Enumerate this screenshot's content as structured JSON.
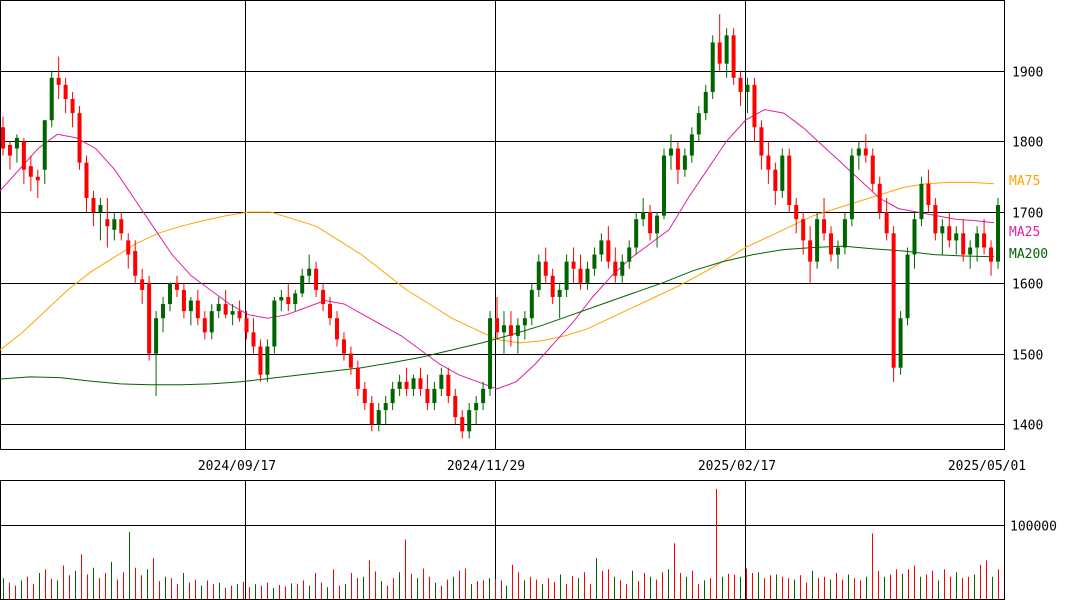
{
  "chart_data": [
    {
      "type": "candlestick",
      "title": "",
      "x_tick_labels": [
        "2024/09/17",
        "2024/11/29",
        "2025/02/17",
        "2025/05/01"
      ],
      "y_tick_labels": [
        "1400",
        "1500",
        "1600",
        "1700",
        "1800",
        "1900"
      ],
      "y_ticks": [
        1400,
        1500,
        1600,
        1700,
        1800,
        1900
      ],
      "ylim": [
        1365,
        2000
      ],
      "grid": true,
      "up_color": "#006400",
      "down_color": "#ff0000",
      "ohlc": [
        [
          1820,
          1835,
          1780,
          1790
        ],
        [
          1795,
          1800,
          1760,
          1780
        ],
        [
          1790,
          1810,
          1770,
          1805
        ],
        [
          1800,
          1805,
          1740,
          1760
        ],
        [
          1765,
          1780,
          1730,
          1750
        ],
        [
          1750,
          1760,
          1720,
          1745
        ],
        [
          1760,
          1830,
          1740,
          1830
        ],
        [
          1830,
          1900,
          1820,
          1890
        ],
        [
          1890,
          1920,
          1860,
          1880
        ],
        [
          1880,
          1890,
          1840,
          1860
        ],
        [
          1860,
          1870,
          1820,
          1840
        ],
        [
          1840,
          1850,
          1760,
          1770
        ],
        [
          1770,
          1780,
          1700,
          1720
        ],
        [
          1720,
          1730,
          1680,
          1700
        ],
        [
          1700,
          1720,
          1660,
          1710
        ],
        [
          1690,
          1720,
          1650,
          1680
        ],
        [
          1675,
          1700,
          1660,
          1690
        ],
        [
          1690,
          1700,
          1660,
          1670
        ],
        [
          1660,
          1670,
          1620,
          1640
        ],
        [
          1645,
          1660,
          1600,
          1610
        ],
        [
          1605,
          1620,
          1570,
          1590
        ],
        [
          1600,
          1610,
          1490,
          1500
        ],
        [
          1500,
          1560,
          1440,
          1550
        ],
        [
          1550,
          1580,
          1530,
          1570
        ],
        [
          1570,
          1600,
          1560,
          1600
        ],
        [
          1600,
          1610,
          1580,
          1590
        ],
        [
          1590,
          1600,
          1550,
          1560
        ],
        [
          1560,
          1580,
          1540,
          1575
        ],
        [
          1575,
          1590,
          1540,
          1550
        ],
        [
          1550,
          1560,
          1520,
          1530
        ],
        [
          1530,
          1570,
          1520,
          1560
        ],
        [
          1560,
          1580,
          1550,
          1570
        ],
        [
          1570,
          1590,
          1550,
          1555
        ],
        [
          1555,
          1570,
          1540,
          1560
        ],
        [
          1560,
          1575,
          1545,
          1550
        ],
        [
          1550,
          1560,
          1520,
          1530
        ],
        [
          1530,
          1550,
          1500,
          1510
        ],
        [
          1510,
          1520,
          1460,
          1470
        ],
        [
          1470,
          1520,
          1460,
          1510
        ],
        [
          1510,
          1580,
          1500,
          1575
        ],
        [
          1575,
          1590,
          1560,
          1580
        ],
        [
          1580,
          1600,
          1560,
          1570
        ],
        [
          1570,
          1590,
          1560,
          1585
        ],
        [
          1585,
          1620,
          1580,
          1610
        ],
        [
          1610,
          1640,
          1600,
          1620
        ],
        [
          1620,
          1630,
          1580,
          1590
        ],
        [
          1590,
          1600,
          1560,
          1570
        ],
        [
          1570,
          1580,
          1540,
          1550
        ],
        [
          1550,
          1560,
          1510,
          1520
        ],
        [
          1520,
          1530,
          1490,
          1500
        ],
        [
          1500,
          1510,
          1470,
          1480
        ],
        [
          1480,
          1490,
          1440,
          1450
        ],
        [
          1450,
          1460,
          1420,
          1430
        ],
        [
          1430,
          1440,
          1390,
          1400
        ],
        [
          1400,
          1430,
          1390,
          1420
        ],
        [
          1420,
          1440,
          1400,
          1430
        ],
        [
          1430,
          1460,
          1420,
          1450
        ],
        [
          1450,
          1470,
          1440,
          1460
        ],
        [
          1460,
          1480,
          1440,
          1450
        ],
        [
          1450,
          1470,
          1440,
          1465
        ],
        [
          1465,
          1480,
          1440,
          1450
        ],
        [
          1450,
          1470,
          1420,
          1430
        ],
        [
          1430,
          1460,
          1420,
          1450
        ],
        [
          1450,
          1480,
          1440,
          1470
        ],
        [
          1470,
          1480,
          1430,
          1440
        ],
        [
          1440,
          1450,
          1400,
          1410
        ],
        [
          1410,
          1420,
          1380,
          1390
        ],
        [
          1390,
          1430,
          1380,
          1420
        ],
        [
          1420,
          1440,
          1400,
          1430
        ],
        [
          1430,
          1460,
          1420,
          1450
        ],
        [
          1450,
          1560,
          1440,
          1550
        ],
        [
          1550,
          1580,
          1520,
          1530
        ],
        [
          1530,
          1560,
          1500,
          1540
        ],
        [
          1540,
          1560,
          1510,
          1525
        ],
        [
          1525,
          1550,
          1500,
          1540
        ],
        [
          1540,
          1560,
          1520,
          1550
        ],
        [
          1550,
          1600,
          1540,
          1590
        ],
        [
          1590,
          1640,
          1580,
          1630
        ],
        [
          1630,
          1650,
          1600,
          1610
        ],
        [
          1610,
          1620,
          1570,
          1580
        ],
        [
          1580,
          1600,
          1550,
          1590
        ],
        [
          1590,
          1640,
          1580,
          1630
        ],
        [
          1630,
          1650,
          1600,
          1620
        ],
        [
          1620,
          1640,
          1590,
          1600
        ],
        [
          1600,
          1630,
          1590,
          1620
        ],
        [
          1620,
          1650,
          1610,
          1640
        ],
        [
          1640,
          1670,
          1630,
          1660
        ],
        [
          1660,
          1680,
          1620,
          1630
        ],
        [
          1630,
          1650,
          1600,
          1610
        ],
        [
          1610,
          1640,
          1600,
          1630
        ],
        [
          1630,
          1660,
          1620,
          1650
        ],
        [
          1650,
          1700,
          1640,
          1690
        ],
        [
          1690,
          1720,
          1680,
          1700
        ],
        [
          1700,
          1710,
          1660,
          1670
        ],
        [
          1670,
          1700,
          1650,
          1695
        ],
        [
          1695,
          1790,
          1690,
          1780
        ],
        [
          1780,
          1810,
          1760,
          1790
        ],
        [
          1790,
          1800,
          1740,
          1760
        ],
        [
          1760,
          1790,
          1750,
          1780
        ],
        [
          1780,
          1820,
          1770,
          1810
        ],
        [
          1810,
          1850,
          1800,
          1840
        ],
        [
          1840,
          1880,
          1830,
          1870
        ],
        [
          1870,
          1950,
          1860,
          1940
        ],
        [
          1940,
          1980,
          1900,
          1910
        ],
        [
          1910,
          1960,
          1890,
          1950
        ],
        [
          1950,
          1960,
          1880,
          1890
        ],
        [
          1890,
          1900,
          1850,
          1870
        ],
        [
          1870,
          1890,
          1840,
          1880
        ],
        [
          1880,
          1890,
          1800,
          1820
        ],
        [
          1820,
          1830,
          1760,
          1780
        ],
        [
          1780,
          1800,
          1740,
          1760
        ],
        [
          1760,
          1770,
          1710,
          1730
        ],
        [
          1730,
          1790,
          1720,
          1780
        ],
        [
          1780,
          1790,
          1700,
          1710
        ],
        [
          1710,
          1720,
          1670,
          1690
        ],
        [
          1690,
          1700,
          1640,
          1660
        ],
        [
          1660,
          1680,
          1600,
          1630
        ],
        [
          1630,
          1700,
          1620,
          1690
        ],
        [
          1690,
          1720,
          1660,
          1670
        ],
        [
          1670,
          1680,
          1630,
          1640
        ],
        [
          1640,
          1660,
          1620,
          1650
        ],
        [
          1650,
          1700,
          1640,
          1690
        ],
        [
          1690,
          1790,
          1680,
          1780
        ],
        [
          1780,
          1800,
          1760,
          1790
        ],
        [
          1790,
          1810,
          1770,
          1780
        ],
        [
          1780,
          1790,
          1730,
          1740
        ],
        [
          1740,
          1750,
          1690,
          1700
        ],
        [
          1700,
          1720,
          1660,
          1670
        ],
        [
          1670,
          1680,
          1460,
          1480
        ],
        [
          1480,
          1560,
          1470,
          1550
        ],
        [
          1550,
          1650,
          1540,
          1640
        ],
        [
          1640,
          1700,
          1620,
          1690
        ],
        [
          1690,
          1750,
          1680,
          1740
        ],
        [
          1740,
          1760,
          1700,
          1710
        ],
        [
          1710,
          1720,
          1660,
          1670
        ],
        [
          1670,
          1690,
          1640,
          1680
        ],
        [
          1680,
          1700,
          1650,
          1660
        ],
        [
          1660,
          1680,
          1640,
          1670
        ],
        [
          1670,
          1690,
          1630,
          1640
        ],
        [
          1640,
          1660,
          1620,
          1650
        ],
        [
          1650,
          1680,
          1630,
          1670
        ],
        [
          1670,
          1690,
          1640,
          1650
        ],
        [
          1650,
          1660,
          1610,
          1630
        ],
        [
          1630,
          1720,
          1620,
          1710
        ]
      ],
      "series": [
        {
          "name": "MA75",
          "color": "#ffa500",
          "values": [
            1505,
            1530,
            1560,
            1590,
            1615,
            1635,
            1655,
            1670,
            1680,
            1688,
            1695,
            1700,
            1700,
            1690,
            1680,
            1660,
            1640,
            1615,
            1590,
            1570,
            1550,
            1535,
            1520,
            1515,
            1518,
            1525,
            1535,
            1550,
            1565,
            1580,
            1595,
            1612,
            1630,
            1650,
            1665,
            1680,
            1695,
            1705,
            1715,
            1725,
            1735,
            1740,
            1742,
            1742,
            1740
          ]
        },
        {
          "name": "MA25",
          "color": "#e020a0",
          "values": [
            1730,
            1760,
            1790,
            1810,
            1805,
            1790,
            1760,
            1720,
            1680,
            1640,
            1610,
            1590,
            1570,
            1555,
            1550,
            1555,
            1565,
            1575,
            1570,
            1555,
            1540,
            1525,
            1505,
            1485,
            1470,
            1460,
            1450,
            1460,
            1485,
            1515,
            1545,
            1580,
            1610,
            1635,
            1655,
            1675,
            1720,
            1760,
            1800,
            1830,
            1845,
            1840,
            1820,
            1795,
            1770,
            1745,
            1720,
            1705,
            1700,
            1695,
            1690,
            1688,
            1685
          ]
        },
        {
          "name": "MA200",
          "color": "#006400",
          "values": [
            1464,
            1467,
            1466,
            1461,
            1457,
            1456,
            1456,
            1457,
            1460,
            1465,
            1470,
            1475,
            1480,
            1487,
            1495,
            1505,
            1515,
            1527,
            1540,
            1555,
            1570,
            1585,
            1600,
            1617,
            1630,
            1640,
            1647,
            1650,
            1652,
            1648,
            1645,
            1640,
            1638,
            1637
          ]
        }
      ]
    },
    {
      "type": "bar",
      "title": "",
      "y_tick_labels": [
        "100000"
      ],
      "y_ticks": [
        100000
      ],
      "ylim": [
        0,
        160000
      ],
      "grid": true,
      "values": [
        28000,
        22000,
        18000,
        25000,
        30000,
        20000,
        35000,
        40000,
        27000,
        25000,
        45000,
        32000,
        38000,
        60000,
        33000,
        42000,
        28000,
        35000,
        50000,
        26000,
        36000,
        90000,
        42000,
        32000,
        40000,
        55000,
        24000,
        30000,
        28000,
        20000,
        35000,
        22000,
        26000,
        18000,
        25000,
        20000,
        22000,
        15000,
        18000,
        20000,
        23000,
        16000,
        20000,
        18000,
        22000,
        15000,
        19000,
        17000,
        21000,
        20000,
        25000,
        18000,
        35000,
        22000,
        16000,
        40000,
        18000,
        20000,
        35000,
        28000,
        30000,
        52000,
        37000,
        24000,
        18000,
        28000,
        36000,
        80000,
        34000,
        28000,
        41000,
        30000,
        22000,
        18000,
        26000,
        30000,
        38000,
        41000,
        20000,
        24000,
        25000,
        28000,
        27000,
        25000,
        18000,
        46000,
        36000,
        25000,
        30000,
        26000,
        20000,
        28000,
        23000,
        33000,
        20000,
        31000,
        28000,
        36000,
        20000,
        55000,
        38000,
        40000,
        30000,
        25000,
        20000,
        38000,
        24000,
        35000,
        30000,
        26000,
        36000,
        40000,
        75000,
        35000,
        30000,
        38000,
        20000,
        25000,
        28000,
        148000,
        30000,
        34000,
        33000,
        30000,
        41000,
        35000,
        36000,
        28000,
        32000,
        33000,
        30000,
        28000,
        26000,
        32000,
        22000,
        38000,
        28000,
        30000,
        26000,
        35000,
        26000,
        33000,
        28000,
        25000,
        30000,
        88000,
        38000,
        30000,
        33000,
        40000,
        34000,
        40000,
        45000,
        30000,
        33000,
        38000,
        25000,
        40000,
        30000,
        36000,
        28000,
        30000,
        33000,
        46000,
        52000,
        30000,
        40000
      ]
    }
  ]
}
